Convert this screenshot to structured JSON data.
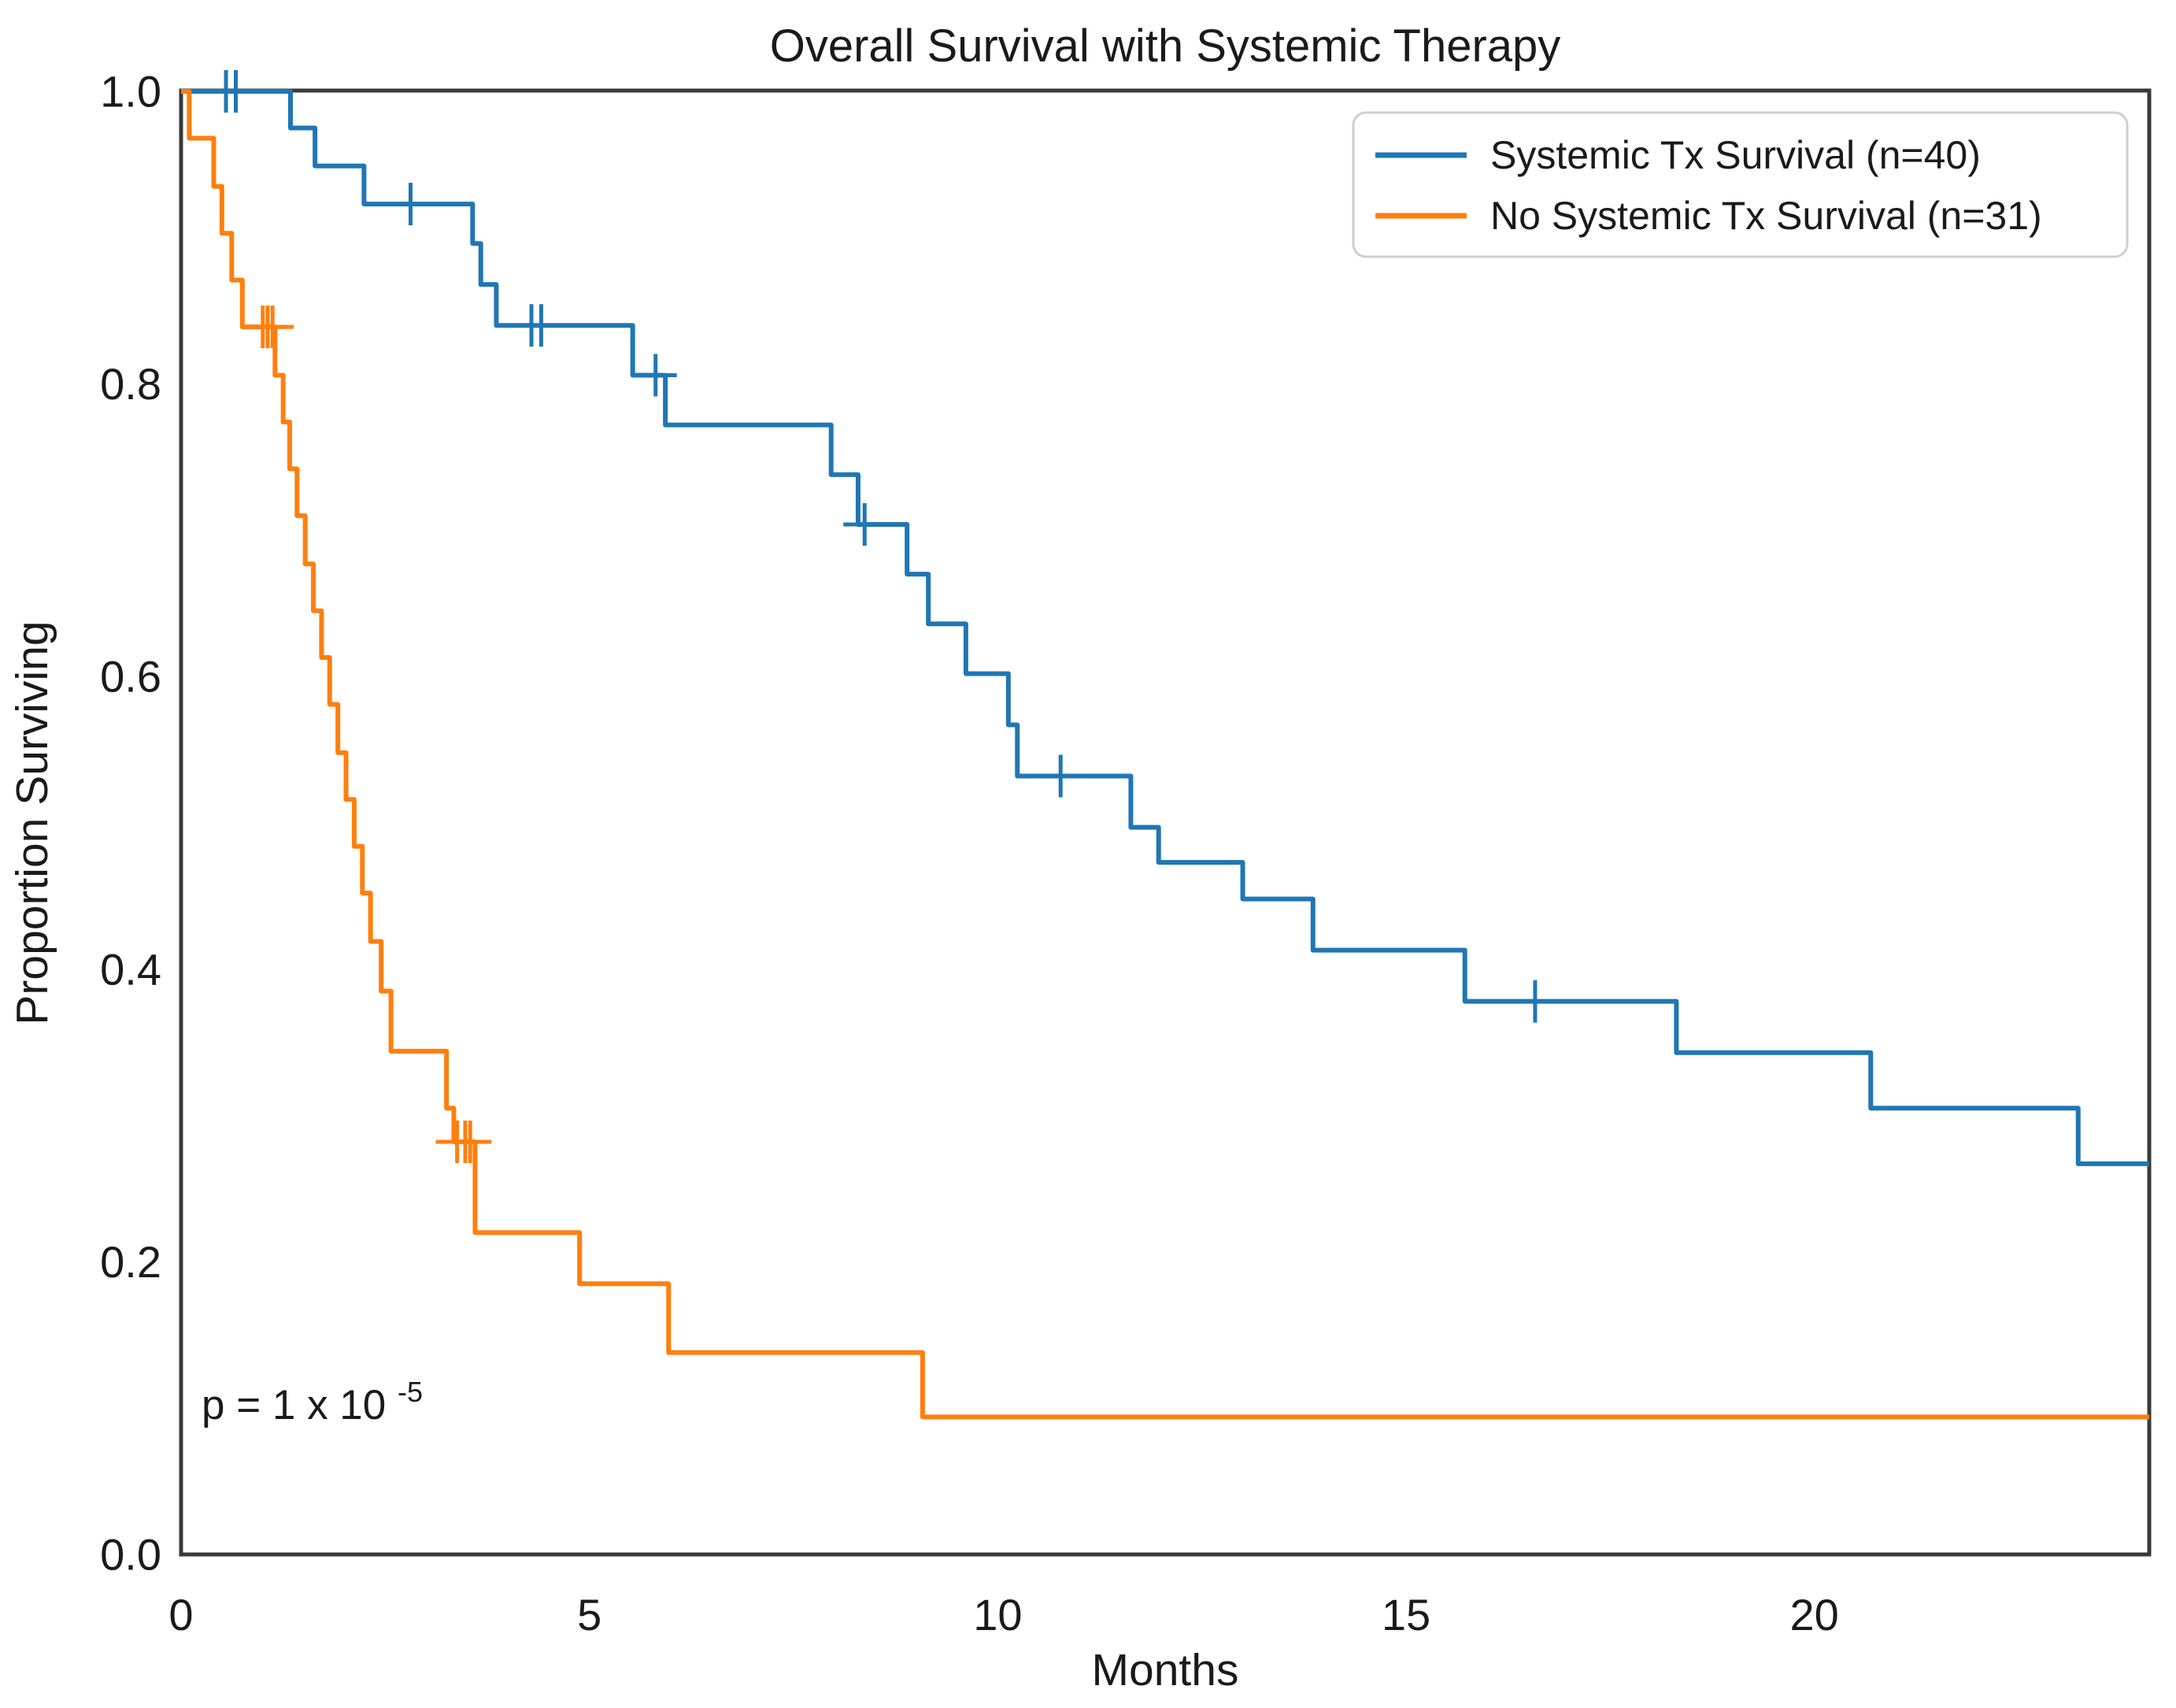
{
  "chart_data": {
    "type": "line",
    "variant": "kaplan_meier_step",
    "title": "Overall Survival with Systemic Therapy",
    "xlabel": "Months",
    "ylabel": "Proportion Surviving",
    "xlim": [
      0,
      24.1
    ],
    "ylim": [
      0.0,
      1.0
    ],
    "x_ticks": [
      0,
      5,
      10,
      15,
      20
    ],
    "x_tick_labels": [
      "0",
      "5",
      "10",
      "15",
      "20"
    ],
    "y_ticks": [
      1.0,
      0.8,
      0.6,
      0.4,
      0.2,
      0.0
    ],
    "y_tick_labels": [
      "1.0",
      "0.8",
      "0.6",
      "0.4",
      "0.2",
      "0.0"
    ],
    "grid": false,
    "legend": {
      "position": "upper right",
      "entries": [
        {
          "label": "Systemic Tx Survival (n=40)",
          "color": "#1f77b4"
        },
        {
          "label": "No Systemic Tx Survival (n=31)",
          "color": "#ff7f0e"
        }
      ]
    },
    "annotation": {
      "text": "p = 1 x 10^-5",
      "base": "p = 1 x 10",
      "exponent": "-5"
    },
    "series": [
      {
        "name": "Systemic Tx Survival (n=40)",
        "color": "#1f77b4",
        "n": 40,
        "steps": [
          [
            0,
            1.0
          ],
          [
            1.34,
            0.975
          ],
          [
            1.64,
            0.949
          ],
          [
            2.24,
            0.923
          ],
          [
            3.57,
            0.896
          ],
          [
            3.67,
            0.868
          ],
          [
            3.86,
            0.84
          ],
          [
            5.53,
            0.806
          ],
          [
            5.93,
            0.772
          ],
          [
            7.96,
            0.738
          ],
          [
            8.29,
            0.704
          ],
          [
            8.89,
            0.67
          ],
          [
            9.15,
            0.636
          ],
          [
            9.61,
            0.602
          ],
          [
            10.13,
            0.567
          ],
          [
            10.24,
            0.532
          ],
          [
            11.63,
            0.497
          ],
          [
            11.97,
            0.473
          ],
          [
            13.0,
            0.448
          ],
          [
            13.86,
            0.413
          ],
          [
            15.72,
            0.378
          ],
          [
            18.31,
            0.343
          ],
          [
            20.69,
            0.305
          ],
          [
            23.23,
            0.267
          ]
        ],
        "censor_marks": [
          [
            0.55,
            1.0
          ],
          [
            0.67,
            1.0
          ],
          [
            2.81,
            0.923
          ],
          [
            4.29,
            0.84
          ],
          [
            4.41,
            0.84
          ],
          [
            5.81,
            0.806
          ],
          [
            8.37,
            0.704
          ],
          [
            10.77,
            0.532
          ],
          [
            16.58,
            0.378
          ]
        ]
      },
      {
        "name": "No Systemic Tx Survival (n=31)",
        "color": "#ff7f0e",
        "n": 31,
        "steps": [
          [
            0,
            1.0
          ],
          [
            0.1,
            0.968
          ],
          [
            0.4,
            0.935
          ],
          [
            0.5,
            0.903
          ],
          [
            0.62,
            0.871
          ],
          [
            0.75,
            0.839
          ],
          [
            1.15,
            0.806
          ],
          [
            1.25,
            0.774
          ],
          [
            1.33,
            0.742
          ],
          [
            1.42,
            0.71
          ],
          [
            1.52,
            0.677
          ],
          [
            1.62,
            0.645
          ],
          [
            1.72,
            0.613
          ],
          [
            1.82,
            0.581
          ],
          [
            1.92,
            0.548
          ],
          [
            2.02,
            0.516
          ],
          [
            2.12,
            0.484
          ],
          [
            2.22,
            0.452
          ],
          [
            2.32,
            0.419
          ],
          [
            2.45,
            0.385
          ],
          [
            2.57,
            0.344
          ],
          [
            3.25,
            0.305
          ],
          [
            3.34,
            0.282
          ],
          [
            3.6,
            0.22
          ],
          [
            4.88,
            0.185
          ],
          [
            5.97,
            0.138
          ],
          [
            9.08,
            0.094
          ]
        ],
        "censor_marks": [
          [
            1.0,
            0.839
          ],
          [
            1.06,
            0.839
          ],
          [
            1.12,
            0.839
          ],
          [
            3.38,
            0.282
          ],
          [
            3.48,
            0.282
          ],
          [
            3.54,
            0.282
          ]
        ]
      }
    ]
  }
}
